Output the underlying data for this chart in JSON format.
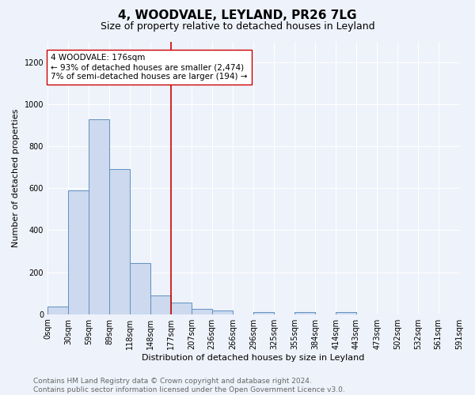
{
  "title": "4, WOODVALE, LEYLAND, PR26 7LG",
  "subtitle": "Size of property relative to detached houses in Leyland",
  "xlabel": "Distribution of detached houses by size in Leyland",
  "ylabel": "Number of detached properties",
  "bar_color": "#ccd9ee",
  "bar_edge_color": "#6090c0",
  "background_color": "#eef2fa",
  "grid_color": "#ffffff",
  "bins": [
    0,
    30,
    59,
    89,
    118,
    148,
    177,
    207,
    236,
    266,
    296,
    325,
    355,
    384,
    414,
    443,
    473,
    502,
    532,
    561,
    591
  ],
  "bin_labels": [
    "0sqm",
    "30sqm",
    "59sqm",
    "89sqm",
    "118sqm",
    "148sqm",
    "177sqm",
    "207sqm",
    "236sqm",
    "266sqm",
    "296sqm",
    "325sqm",
    "355sqm",
    "384sqm",
    "414sqm",
    "443sqm",
    "473sqm",
    "502sqm",
    "532sqm",
    "561sqm",
    "591sqm"
  ],
  "values": [
    35,
    590,
    930,
    690,
    245,
    90,
    55,
    25,
    17,
    0,
    10,
    0,
    10,
    0,
    10,
    0,
    0,
    0,
    0,
    0
  ],
  "ylim": [
    0,
    1300
  ],
  "yticks": [
    0,
    200,
    400,
    600,
    800,
    1000,
    1200
  ],
  "vline_x": 177,
  "annotation_text": "4 WOODVALE: 176sqm\n← 93% of detached houses are smaller (2,474)\n7% of semi-detached houses are larger (194) →",
  "vline_color": "#cc0000",
  "annotation_box_edge": "#cc0000",
  "footer_line1": "Contains HM Land Registry data © Crown copyright and database right 2024.",
  "footer_line2": "Contains public sector information licensed under the Open Government Licence v3.0.",
  "title_fontsize": 11,
  "subtitle_fontsize": 9,
  "axis_label_fontsize": 8,
  "tick_fontsize": 7,
  "annotation_fontsize": 7.5,
  "footer_fontsize": 6.5
}
